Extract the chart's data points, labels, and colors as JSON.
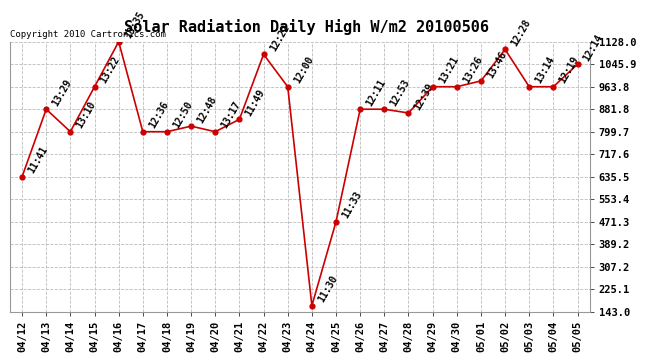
{
  "title": "Solar Radiation Daily High W/m2 20100506",
  "copyright": "Copyright 2010 Cartronics.com",
  "background_color": "#ffffff",
  "plot_bg_color": "#ffffff",
  "grid_color": "#bbbbbb",
  "line_color": "#cc0000",
  "marker_color": "#cc0000",
  "ylim": [
    143.0,
    1128.0
  ],
  "yticks": [
    143.0,
    225.1,
    307.2,
    389.2,
    471.3,
    553.4,
    635.5,
    717.6,
    799.7,
    881.8,
    963.8,
    1045.9,
    1128.0
  ],
  "dates": [
    "04/12",
    "04/13",
    "04/14",
    "04/15",
    "04/16",
    "04/17",
    "04/18",
    "04/19",
    "04/20",
    "04/21",
    "04/22",
    "04/23",
    "04/24",
    "04/25",
    "04/26",
    "04/27",
    "04/28",
    "04/29",
    "04/30",
    "05/01",
    "05/02",
    "05/03",
    "05/04",
    "05/05"
  ],
  "values": [
    635.5,
    881.8,
    799.7,
    963.8,
    1128.0,
    799.7,
    799.7,
    820.0,
    799.7,
    845.0,
    1082.0,
    963.8,
    165.0,
    471.3,
    881.8,
    881.8,
    868.0,
    963.8,
    963.8,
    985.0,
    1100.0,
    963.8,
    963.8,
    1045.9
  ],
  "labels": [
    "11:41",
    "13:29",
    "13:10",
    "13:22",
    "13:35",
    "12:36",
    "12:50",
    "12:48",
    "13:17",
    "11:49",
    "12:22",
    "12:00",
    "11:30",
    "11:33",
    "12:11",
    "12:53",
    "12:39",
    "13:21",
    "13:26",
    "13:46",
    "12:28",
    "13:14",
    "12:19",
    "12:14"
  ],
  "title_fontsize": 11,
  "label_fontsize": 7,
  "tick_fontsize": 7.5,
  "copyright_fontsize": 6.5
}
